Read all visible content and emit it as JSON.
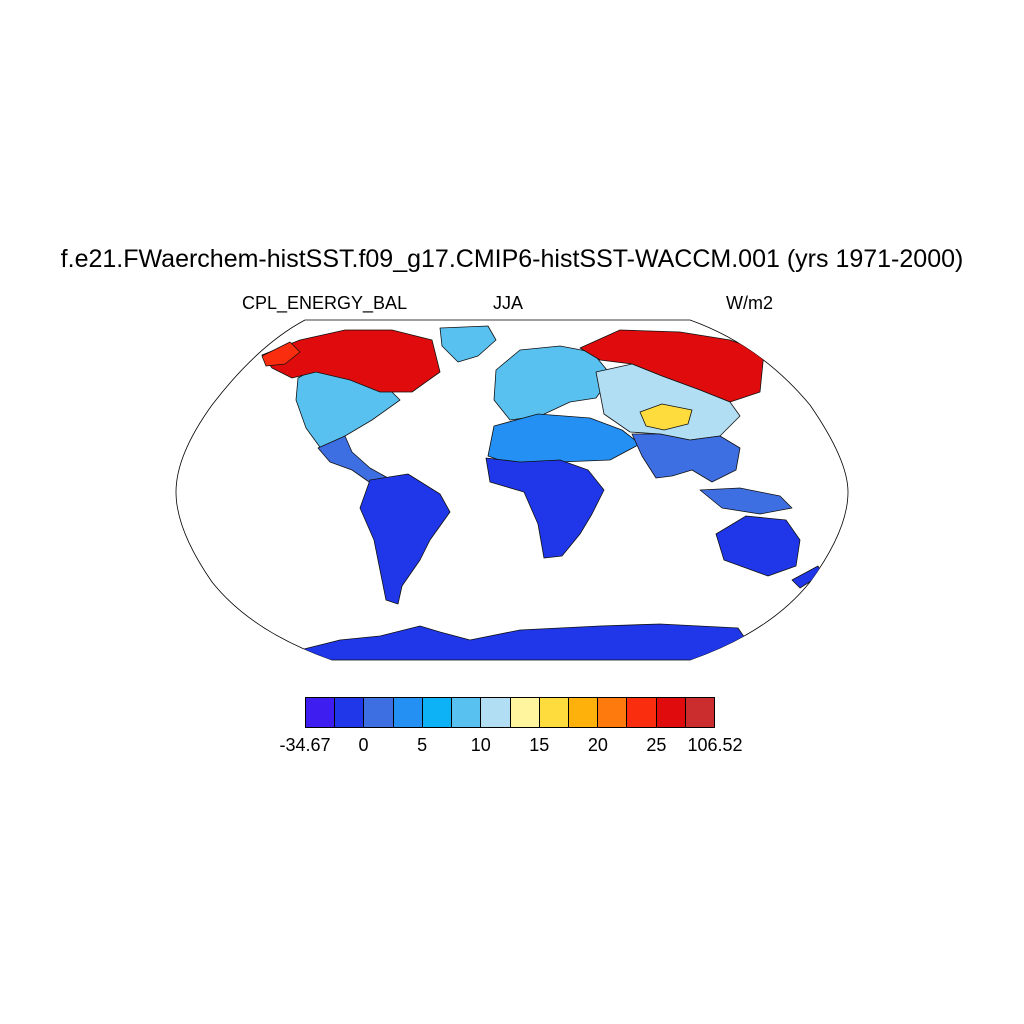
{
  "title": "f.e21.FWaerchem-histSST.f09_g17.CMIP6-histSST-WACCM.001 (yrs 1971-2000)",
  "variable": "CPL_ENERGY_BAL",
  "season": "JJA",
  "units": "W/m2",
  "colorbar": {
    "colors": [
      "#3d1df0",
      "#1f37e9",
      "#3e6fe2",
      "#2590f4",
      "#0db2f6",
      "#58c1ef",
      "#b1def3",
      "#fff59e",
      "#fedc3d",
      "#feb10a",
      "#fe7a0d",
      "#fa2e0e",
      "#e00b0c",
      "#cb2d2e"
    ],
    "labels": [
      "-34.67",
      "0",
      "5",
      "10",
      "15",
      "20",
      "25",
      "106.52"
    ]
  },
  "regions": [
    {
      "name": "Canadian Arctic / Greenland",
      "class": 12
    },
    {
      "name": "Alaska",
      "class": 11
    },
    {
      "name": "North America",
      "class": 5
    },
    {
      "name": "Central America",
      "class": 2
    },
    {
      "name": "South America",
      "class": 1
    },
    {
      "name": "Europe",
      "class": 5
    },
    {
      "name": "Siberia",
      "class": 12
    },
    {
      "name": "Central Asia",
      "class": 6
    },
    {
      "name": "Tibet",
      "class": 8
    },
    {
      "name": "North Africa / Arabia",
      "class": 3
    },
    {
      "name": "Central Africa",
      "class": 1
    },
    {
      "name": "India / SE Asia",
      "class": 2
    },
    {
      "name": "Australia",
      "class": 1
    },
    {
      "name": "Antarctica",
      "class": 1
    }
  ]
}
